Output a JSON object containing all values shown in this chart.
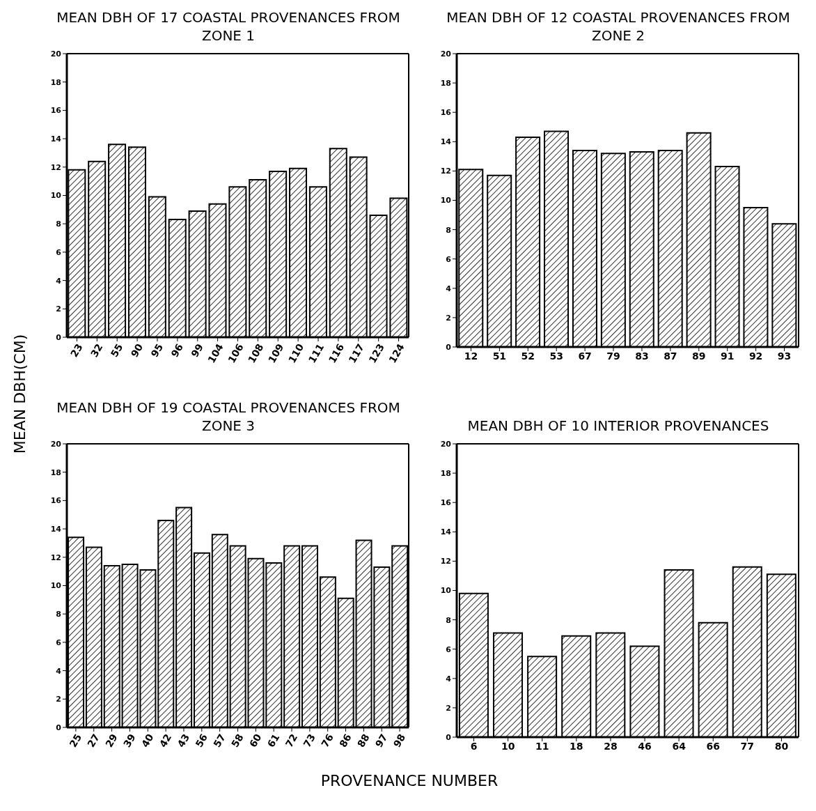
{
  "chart_data": [
    {
      "type": "bar",
      "title": "MEAN DBH OF 17 COASTAL PROVENANCES FROM ZONE 1",
      "ylabel": "MEAN DBH(CM)",
      "categories": [
        "23",
        "32",
        "55",
        "90",
        "95",
        "96",
        "99",
        "104",
        "106",
        "108",
        "109",
        "110",
        "111",
        "116",
        "117",
        "123",
        "124"
      ],
      "values": [
        11.8,
        12.4,
        13.6,
        13.4,
        9.9,
        8.3,
        8.9,
        9.4,
        10.6,
        11.1,
        11.7,
        11.9,
        10.6,
        13.3,
        12.7,
        8.6,
        9.8
      ],
      "color": "#000000",
      "ylim": [
        0,
        20
      ],
      "yticks": [
        0,
        2,
        4,
        6,
        8,
        10,
        12,
        14,
        16,
        18,
        20
      ],
      "grid": false,
      "legend": false
    },
    {
      "type": "bar",
      "title": "MEAN DBH OF 12 COASTAL PROVENANCES FROM ZONE 2",
      "categories": [
        "12",
        "51",
        "52",
        "53",
        "67",
        "79",
        "83",
        "87",
        "89",
        "91",
        "92",
        "93"
      ],
      "values": [
        12.1,
        11.7,
        14.3,
        14.7,
        13.4,
        13.2,
        13.3,
        13.4,
        14.6,
        12.3,
        9.5,
        8.4
      ],
      "color": "#000000",
      "ylim": [
        0,
        20
      ],
      "yticks": [
        0,
        2,
        4,
        6,
        8,
        10,
        12,
        14,
        16,
        18,
        20
      ],
      "grid": false,
      "legend": false
    },
    {
      "type": "bar",
      "title": "MEAN DBH OF 19 COASTAL PROVENANCES FROM ZONE 3",
      "categories": [
        "25",
        "27",
        "29",
        "39",
        "40",
        "42",
        "43",
        "56",
        "57",
        "58",
        "60",
        "61",
        "72",
        "73",
        "76",
        "86",
        "88",
        "97",
        "98"
      ],
      "values": [
        13.4,
        12.7,
        11.4,
        11.5,
        11.1,
        14.6,
        15.5,
        12.3,
        13.6,
        12.8,
        11.9,
        11.6,
        12.8,
        12.8,
        10.6,
        9.1,
        13.2,
        11.3,
        12.8
      ],
      "color": "#000000",
      "ylim": [
        0,
        20
      ],
      "yticks": [
        0,
        2,
        4,
        6,
        8,
        10,
        12,
        14,
        16,
        18,
        20
      ],
      "grid": false,
      "legend": false
    },
    {
      "type": "bar",
      "title": "MEAN DBH OF 10 INTERIOR PROVENANCES",
      "xlabel": "PROVENANCE NUMBER",
      "categories": [
        "6",
        "10",
        "11",
        "18",
        "28",
        "46",
        "64",
        "66",
        "77",
        "80"
      ],
      "values": [
        9.8,
        7.1,
        5.5,
        6.9,
        7.1,
        6.2,
        11.4,
        7.8,
        11.6,
        11.1
      ],
      "color": "#000000",
      "ylim": [
        0,
        20
      ],
      "yticks": [
        0,
        2,
        4,
        6,
        8,
        10,
        12,
        14,
        16,
        18,
        20
      ],
      "grid": false,
      "legend": false
    }
  ]
}
